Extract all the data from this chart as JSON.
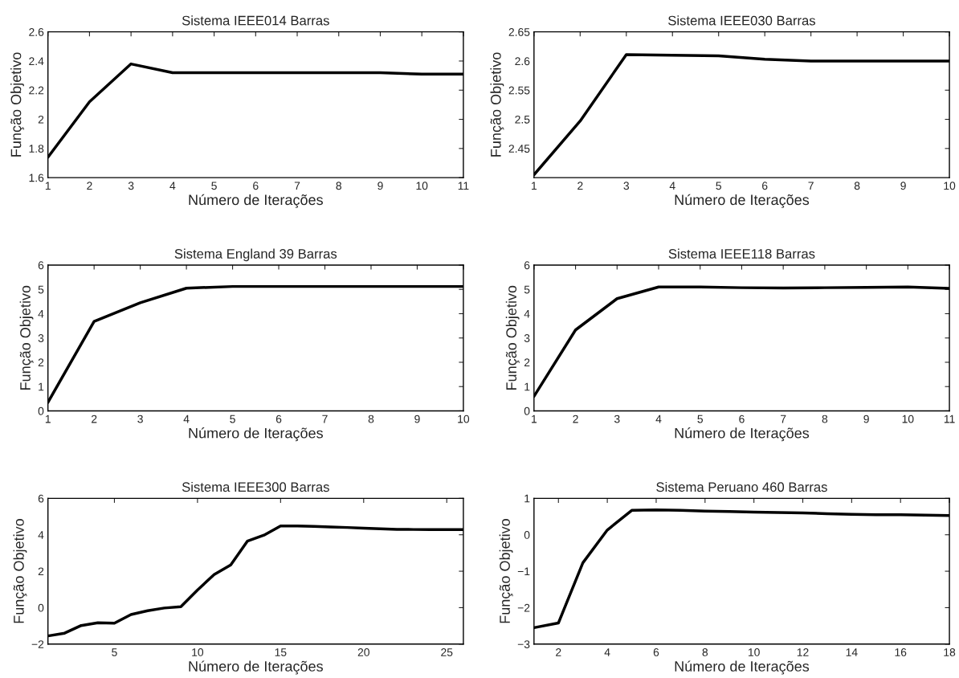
{
  "chart_data": [
    {
      "type": "line",
      "title": "Sistema IEEE014 Barras",
      "xlabel": "Número de Iterações",
      "ylabel": "Função Objetivo",
      "x": [
        1,
        2,
        3,
        4,
        5,
        6,
        7,
        8,
        9,
        10,
        11
      ],
      "series": [
        {
          "color": "#000000",
          "values": [
            1.74,
            2.12,
            2.38,
            2.32,
            2.32,
            2.32,
            2.32,
            2.32,
            2.32,
            2.31,
            2.31
          ]
        }
      ],
      "xlim": [
        1,
        11
      ],
      "xticks": [
        1,
        2,
        3,
        4,
        5,
        6,
        7,
        8,
        9,
        10,
        11
      ],
      "ylim": [
        1.6,
        2.6
      ],
      "yticks": [
        1.6,
        1.8,
        2,
        2.2,
        2.4,
        2.6
      ]
    },
    {
      "type": "line",
      "title": "Sistema IEEE030 Barras",
      "xlabel": "Número de Iterações",
      "ylabel": "Função Objetivo",
      "x": [
        1,
        2,
        3,
        4,
        5,
        6,
        7,
        8,
        9,
        10
      ],
      "series": [
        {
          "color": "#000000",
          "values": [
            2.405,
            2.497,
            2.611,
            2.61,
            2.609,
            2.603,
            2.6,
            2.6,
            2.6,
            2.6
          ]
        }
      ],
      "xlim": [
        1,
        10
      ],
      "xticks": [
        1,
        2,
        3,
        4,
        5,
        6,
        7,
        8,
        9,
        10
      ],
      "ylim": [
        2.4,
        2.65
      ],
      "yticks": [
        2.45,
        2.5,
        2.55,
        2.6,
        2.65
      ]
    },
    {
      "type": "line",
      "title": "Sistema England 39 Barras",
      "xlabel": "Número de Iterações",
      "ylabel": "Função Objetivo",
      "x": [
        1,
        2,
        3,
        4,
        5,
        6,
        7,
        8,
        9,
        10
      ],
      "series": [
        {
          "color": "#000000",
          "values": [
            0.35,
            3.68,
            4.45,
            5.05,
            5.12,
            5.12,
            5.12,
            5.12,
            5.12,
            5.12
          ]
        }
      ],
      "xlim": [
        1,
        10
      ],
      "xticks": [
        1,
        2,
        3,
        4,
        5,
        6,
        7,
        8,
        9,
        10
      ],
      "ylim": [
        0,
        6
      ],
      "yticks": [
        0,
        1,
        2,
        3,
        4,
        5,
        6
      ]
    },
    {
      "type": "line",
      "title": "Sistema IEEE118 Barras",
      "xlabel": "Número de Iterações",
      "ylabel": "Função Objetivo",
      "x": [
        1,
        2,
        3,
        4,
        5,
        6,
        7,
        8,
        9,
        10,
        11
      ],
      "series": [
        {
          "color": "#000000",
          "values": [
            0.6,
            3.33,
            4.62,
            5.1,
            5.1,
            5.07,
            5.06,
            5.07,
            5.08,
            5.1,
            5.04
          ]
        }
      ],
      "xlim": [
        1,
        11
      ],
      "xticks": [
        1,
        2,
        3,
        4,
        5,
        6,
        7,
        8,
        9,
        10,
        11
      ],
      "ylim": [
        0,
        6
      ],
      "yticks": [
        0,
        1,
        2,
        3,
        4,
        5,
        6
      ]
    },
    {
      "type": "line",
      "title": "Sistema IEEE300 Barras",
      "xlabel": "Número de Iterações",
      "ylabel": "Função Objetivo",
      "x": [
        1,
        2,
        3,
        4,
        5,
        6,
        7,
        8,
        9,
        10,
        11,
        12,
        13,
        14,
        15,
        16,
        17,
        18,
        19,
        20,
        21,
        22,
        23,
        24,
        25,
        26
      ],
      "series": [
        {
          "color": "#000000",
          "values": [
            -1.55,
            -1.4,
            -0.98,
            -0.83,
            -0.85,
            -0.38,
            -0.17,
            -0.02,
            0.05,
            0.97,
            1.82,
            2.35,
            3.65,
            3.98,
            4.48,
            4.48,
            4.46,
            4.43,
            4.4,
            4.36,
            4.33,
            4.3,
            4.29,
            4.28,
            4.28,
            4.28
          ]
        }
      ],
      "xlim": [
        1,
        26
      ],
      "xticks": [
        5,
        10,
        15,
        20,
        25
      ],
      "ylim": [
        -2,
        6
      ],
      "yticks": [
        {
          "value": -2,
          "label": "−2"
        },
        0,
        2,
        4,
        6
      ]
    },
    {
      "type": "line",
      "title": "Sistema Peruano 460 Barras",
      "xlabel": "Número de Iterações",
      "ylabel": "Função Objetivo",
      "x": [
        1,
        2,
        3,
        4,
        5,
        6,
        7,
        8,
        9,
        10,
        11,
        12,
        13,
        14,
        15,
        16,
        17,
        18
      ],
      "series": [
        {
          "color": "#000000",
          "values": [
            -2.55,
            -2.42,
            -0.77,
            0.13,
            0.67,
            0.68,
            0.67,
            0.65,
            0.64,
            0.62,
            0.61,
            0.6,
            0.58,
            0.56,
            0.55,
            0.55,
            0.54,
            0.53
          ]
        }
      ],
      "xlim": [
        1,
        18
      ],
      "xticks": [
        2,
        4,
        6,
        8,
        10,
        12,
        14,
        16,
        18
      ],
      "ylim": [
        -3,
        1
      ],
      "yticks": [
        {
          "value": -3,
          "label": "−3"
        },
        {
          "value": -2,
          "label": "−2"
        },
        {
          "value": -1,
          "label": "−1"
        },
        0,
        1
      ]
    }
  ]
}
